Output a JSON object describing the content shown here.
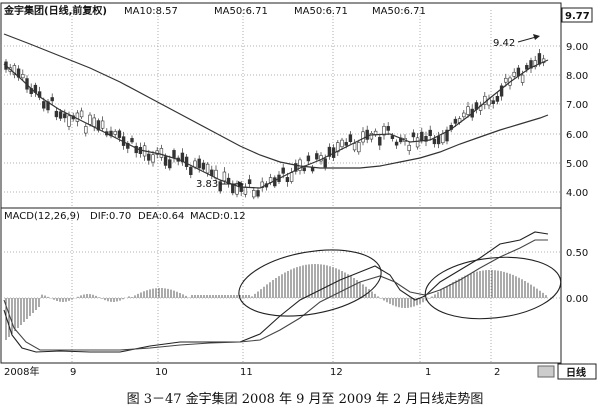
{
  "header": {
    "stock_title": "金宇集团(日线,前复权)",
    "ma_labels": [
      "MA10:8.57",
      "MA50:6.71",
      "MA50:6.71",
      "MA50:6.71"
    ],
    "price_box_value": "9.77"
  },
  "annotations": {
    "low_label": "3.83",
    "high_label": "9.42"
  },
  "macd_header": {
    "label": "MACD(12,26,9)",
    "dif": "DIF:0.70",
    "dea": "DEA:0.64",
    "macd": "MACD:0.12"
  },
  "price_axis": [
    "9.00",
    "8.00",
    "7.00",
    "6.00",
    "5.00",
    "4.00"
  ],
  "macd_axis": [
    "0.50",
    "0.00"
  ],
  "time_axis": [
    "2008年",
    "9",
    "10",
    "11",
    "12",
    "1",
    "2"
  ],
  "period_button": "日线",
  "caption": "图 3－47   金宇集团 2008 年 9 月至 2009 年 2 月日线走势图"
}
